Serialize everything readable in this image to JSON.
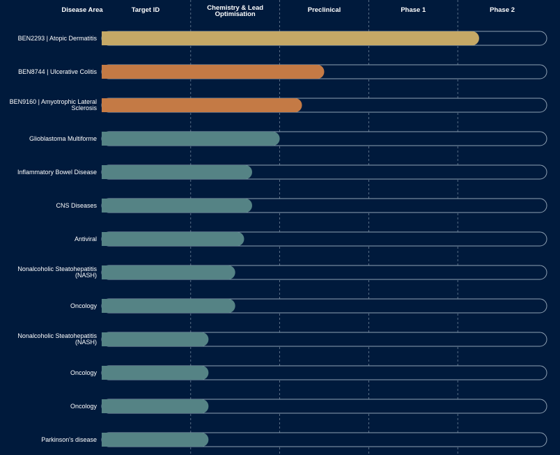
{
  "chart_data": {
    "type": "bar",
    "orientation": "horizontal",
    "columns": [
      "Disease Area",
      "Target ID",
      "Chemistry & Lead Optimisation",
      "Preclinical",
      "Phase 1",
      "Phase 2"
    ],
    "categories": [
      "BEN2293 | Atopic Dermatitis",
      "BEN8744 | Ulcerative Colitis",
      "BEN9160 | Amyotrophic Lateral Sclerosis",
      "Glioblastoma Multiforme",
      "Inflammatory Bowel Disease",
      "CNS Diseases",
      "Antiviral",
      "Nonalcoholic Steatohepatitis (NASH)",
      "Oncology",
      "Nonalcoholic Steatohepatitis (NASH)",
      "Oncology",
      "Oncology",
      "Parkinson's disease"
    ],
    "values": [
      4.24,
      2.5,
      2.25,
      2.0,
      1.69,
      1.69,
      1.6,
      1.5,
      1.5,
      1.2,
      1.2,
      1.2,
      1.2
    ],
    "value_unit": "stage columns completed (0 = start of Target ID, 5 = end of Phase 2)",
    "bar_colors": [
      "#c5a866",
      "#c47a45",
      "#c47a45",
      "#558385",
      "#558385",
      "#558385",
      "#558385",
      "#558385",
      "#558385",
      "#558385",
      "#558385",
      "#558385",
      "#558385"
    ],
    "xlim": [
      0,
      5
    ],
    "grid": "dashed vertical lines between stage columns",
    "track_color": "#001a3c",
    "track_border_color": "#8fa1b3"
  }
}
